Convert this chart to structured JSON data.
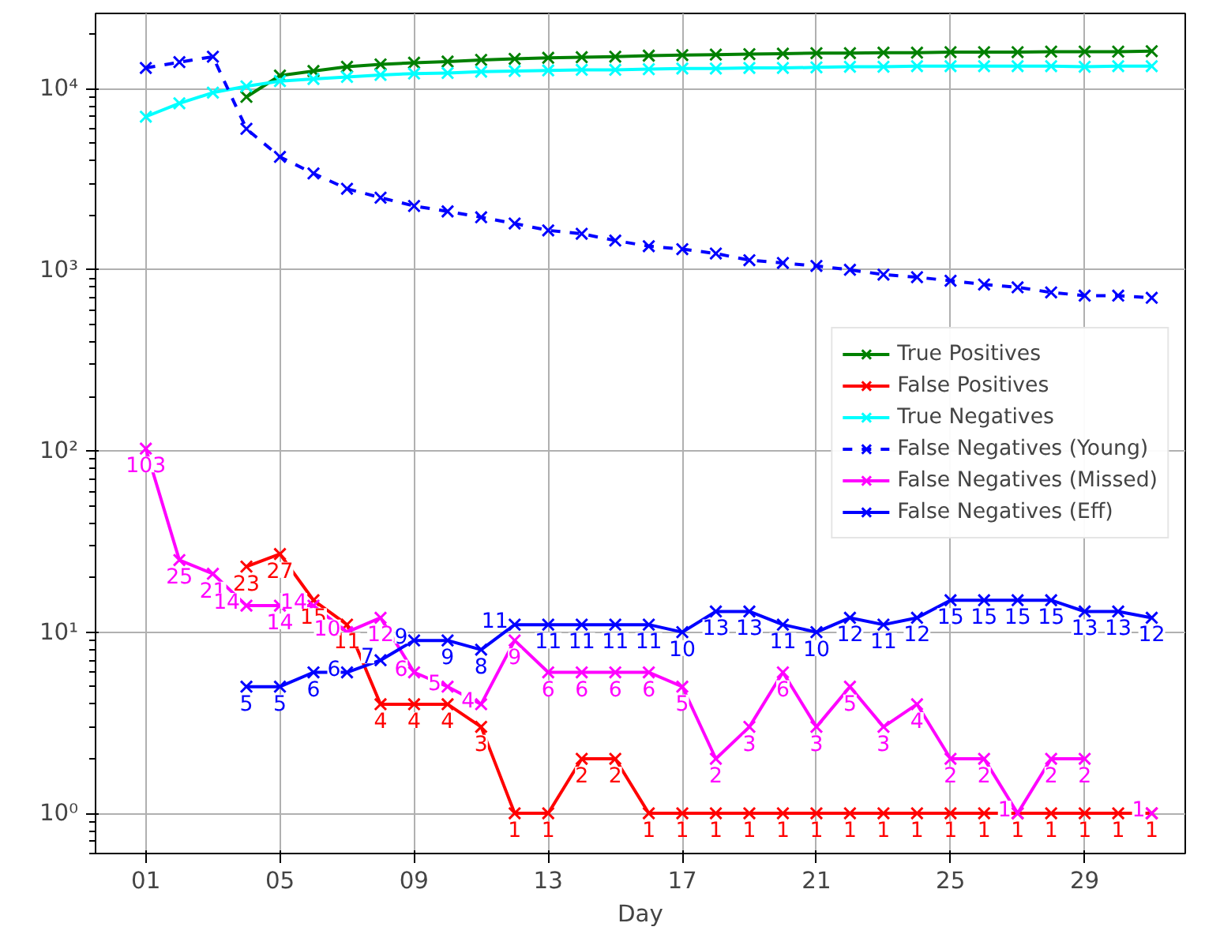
{
  "chart_data": {
    "type": "line",
    "xlabel": "Day",
    "x": [
      1,
      2,
      3,
      4,
      5,
      6,
      7,
      8,
      9,
      10,
      11,
      12,
      13,
      14,
      15,
      16,
      17,
      18,
      19,
      20,
      21,
      22,
      23,
      24,
      25,
      26,
      27,
      28,
      29,
      30,
      31
    ],
    "xlim": [
      -0.5,
      32
    ],
    "xticks": [
      {
        "value": 1,
        "label": "01"
      },
      {
        "value": 5,
        "label": "05"
      },
      {
        "value": 9,
        "label": "09"
      },
      {
        "value": 13,
        "label": "13"
      },
      {
        "value": 17,
        "label": "17"
      },
      {
        "value": 21,
        "label": "21"
      },
      {
        "value": 25,
        "label": "25"
      },
      {
        "value": 29,
        "label": "29"
      }
    ],
    "log": true,
    "ylim": [
      0.6,
      26000
    ],
    "yticks": [
      {
        "value": 1,
        "label": "10⁰"
      },
      {
        "value": 10,
        "label": "10¹"
      },
      {
        "value": 100,
        "label": "10²"
      },
      {
        "value": 1000,
        "label": "10³"
      },
      {
        "value": 10000,
        "label": "10⁴"
      }
    ],
    "grid": true,
    "legend": "right",
    "marker": "cross",
    "series": [
      {
        "name": "True Positives",
        "color": "#008000",
        "values": [
          null,
          null,
          null,
          9000,
          11800,
          12500,
          13200,
          13600,
          13900,
          14100,
          14400,
          14600,
          14800,
          14900,
          15000,
          15200,
          15300,
          15400,
          15500,
          15600,
          15700,
          15700,
          15800,
          15800,
          15900,
          15900,
          15900,
          16000,
          16000,
          16000,
          16100
        ]
      },
      {
        "name": "False Positives",
        "color": "#ff0000",
        "data_labels": true,
        "values": [
          null,
          null,
          null,
          23,
          27,
          15,
          11,
          4,
          4,
          4,
          3,
          1,
          1,
          2,
          2,
          1,
          1,
          1,
          1,
          1,
          1,
          1,
          1,
          1,
          1,
          1,
          1,
          1,
          1,
          1,
          1
        ]
      },
      {
        "name": "True Negatives",
        "color": "#00ffff",
        "values": [
          7000,
          8300,
          9500,
          10300,
          11000,
          11300,
          11600,
          11900,
          12100,
          12200,
          12400,
          12500,
          12600,
          12700,
          12700,
          12800,
          12900,
          12900,
          13000,
          13000,
          13100,
          13200,
          13200,
          13300,
          13300,
          13300,
          13300,
          13300,
          13200,
          13300,
          13300
        ]
      },
      {
        "name": "False Negatives (Young)",
        "color": "#0000ff",
        "line_style": "dashed",
        "values": [
          13000,
          14000,
          15000,
          6000,
          4200,
          3400,
          2800,
          2500,
          2250,
          2100,
          1950,
          1800,
          1650,
          1580,
          1450,
          1350,
          1300,
          1230,
          1130,
          1090,
          1050,
          1000,
          940,
          910,
          870,
          830,
          800,
          750,
          720,
          720,
          700
        ]
      },
      {
        "name": "False Negatives (Missed)",
        "color": "#ff00ff",
        "data_labels": true,
        "values": [
          103,
          25,
          21,
          14,
          14,
          14,
          10,
          12,
          6,
          5,
          4,
          9,
          6,
          6,
          6,
          6,
          5,
          2,
          3,
          6,
          3,
          5,
          3,
          4,
          2,
          2,
          1,
          2,
          2,
          null,
          1
        ]
      },
      {
        "name": "False Negatives (Eff)",
        "color": "#0000ff",
        "data_labels": true,
        "values": [
          null,
          null,
          null,
          5,
          5,
          6,
          6,
          7,
          9,
          9,
          8,
          11,
          11,
          11,
          11,
          11,
          10,
          13,
          13,
          11,
          10,
          12,
          11,
          12,
          15,
          15,
          15,
          15,
          13,
          13,
          12
        ]
      }
    ]
  }
}
